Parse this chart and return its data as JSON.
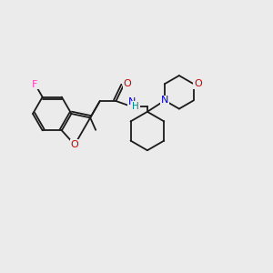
{
  "background_color": "#ebebeb",
  "bond_color": "#1a1a1a",
  "atom_colors": {
    "F": "#ff44bb",
    "O": "#cc0000",
    "N": "#0000cc",
    "C": "#1a1a1a",
    "H": "#008888"
  }
}
